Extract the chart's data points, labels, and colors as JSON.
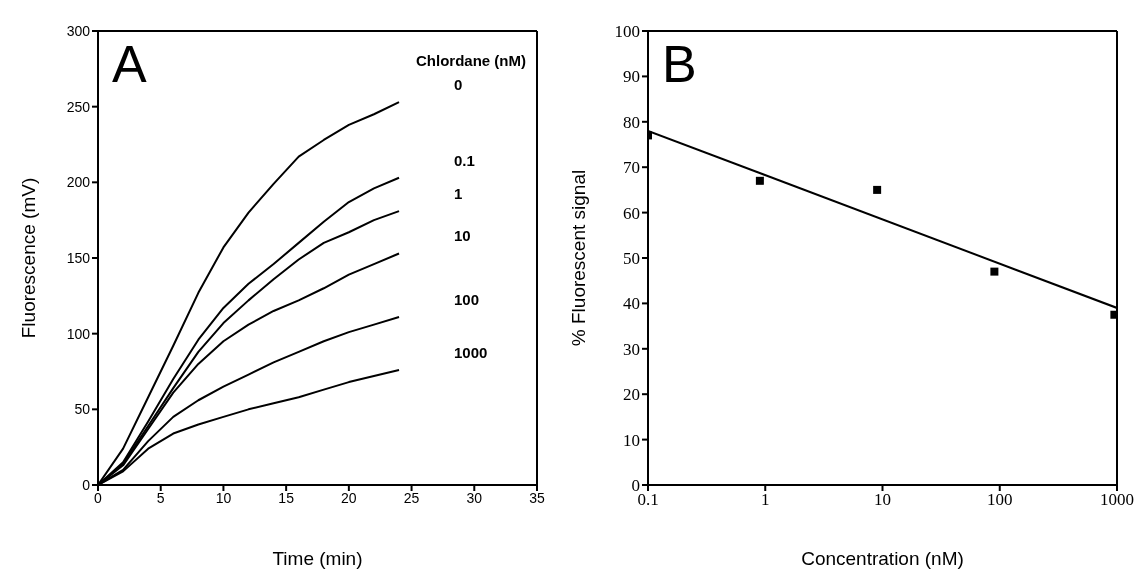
{
  "chart_data": [
    {
      "type": "line",
      "title": "A",
      "legend_title": "Chlordane (nM)",
      "xlabel": "Time (min)",
      "ylabel": "Fluorescence (mV)",
      "x": [
        0,
        2,
        4,
        6,
        8,
        10,
        12,
        14,
        16,
        18,
        20,
        22,
        24
      ],
      "xlim": [
        0,
        35
      ],
      "xticks": [
        0,
        5,
        10,
        15,
        20,
        25,
        30,
        35
      ],
      "ylim": [
        0,
        300
      ],
      "yticks": [
        0,
        50,
        100,
        150,
        200,
        250,
        300
      ],
      "marker": "none",
      "line_style": "solid",
      "series": [
        {
          "name": "0",
          "color": "#000000",
          "values": [
            0,
            24,
            58,
            92,
            127,
            157,
            180,
            199,
            217,
            228,
            238,
            245,
            253
          ]
        },
        {
          "name": "0.1",
          "color": "#000000",
          "values": [
            0,
            15,
            42,
            70,
            96,
            117,
            133,
            146,
            160,
            174,
            187,
            196,
            203
          ]
        },
        {
          "name": "1",
          "color": "#000000",
          "values": [
            0,
            14,
            39,
            64,
            88,
            107,
            122,
            136,
            149,
            160,
            167,
            175,
            181
          ]
        },
        {
          "name": "10",
          "color": "#000000",
          "values": [
            0,
            13,
            37,
            61,
            80,
            95,
            106,
            115,
            122,
            130,
            139,
            146,
            153
          ]
        },
        {
          "name": "100",
          "color": "#000000",
          "values": [
            0,
            10,
            29,
            45,
            56,
            65,
            73,
            81,
            88,
            95,
            101,
            106,
            111
          ]
        },
        {
          "name": "1000",
          "color": "#000000",
          "values": [
            0,
            9,
            24,
            34,
            40,
            45,
            50,
            54,
            58,
            63,
            68,
            72,
            76
          ]
        }
      ]
    },
    {
      "type": "scatter",
      "title": "B",
      "xlabel": "Concentration (nM)",
      "ylabel": "% Fluorescent signal",
      "log": "x",
      "xlim": [
        0.1,
        1000
      ],
      "xticks": [
        0.1,
        1,
        10,
        100,
        1000
      ],
      "ylim": [
        0,
        100
      ],
      "yticks": [
        0,
        10,
        20,
        30,
        40,
        50,
        60,
        70,
        80,
        90,
        100
      ],
      "series": [
        {
          "marker": "square",
          "color": "#000000",
          "x": [
            0.1,
            0.9,
            9,
            90,
            950
          ],
          "values": [
            77,
            67,
            65,
            47,
            37.5
          ]
        },
        {
          "type": "line",
          "marker": "none",
          "color": "#000000",
          "x": [
            0.1,
            1000
          ],
          "values": [
            78,
            39
          ]
        }
      ]
    }
  ]
}
